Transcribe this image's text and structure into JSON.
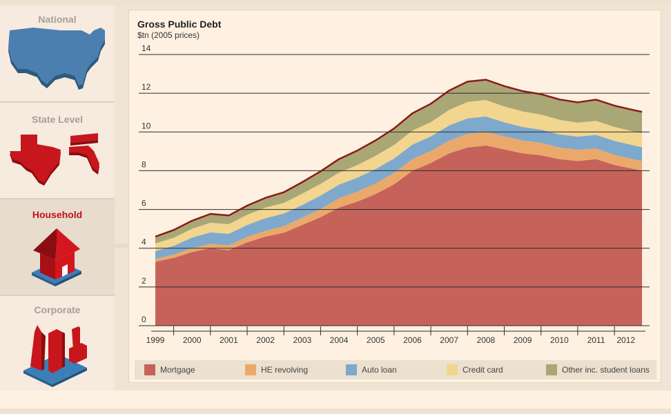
{
  "sidebar": {
    "items": [
      {
        "label": "National",
        "icon": "us-map-icon",
        "active": false
      },
      {
        "label": "State Level",
        "icon": "state-maps-icon",
        "active": false
      },
      {
        "label": "Household",
        "icon": "house-icon",
        "active": true
      },
      {
        "label": "Corporate",
        "icon": "buildings-icon",
        "active": false
      }
    ]
  },
  "colors": {
    "accent": "#c0111e",
    "mortgage": "#c5635a",
    "he_revolving": "#eba86b",
    "auto_loan": "#7ea9cc",
    "credit_card": "#f2d58e",
    "other": "#a9a775",
    "total_line": "#8b1a1a"
  },
  "chart_data": {
    "type": "area",
    "stacked": true,
    "title": "Gross Public Debt",
    "subtitle": "$tn (2005 prices)",
    "xlabel": "",
    "ylabel": "",
    "ylim": [
      0,
      14
    ],
    "yticks": [
      "0",
      "2",
      "4",
      "6",
      "8",
      "10",
      "12",
      "14"
    ],
    "xticks": [
      "1999",
      "2000",
      "2001",
      "2002",
      "2003",
      "2004",
      "2005",
      "2006",
      "2007",
      "2008",
      "2009",
      "2010",
      "2011",
      "2012"
    ],
    "x": [
      1999.0,
      1999.5,
      2000.0,
      2000.5,
      2001.0,
      2001.5,
      2002.0,
      2002.5,
      2003.0,
      2003.5,
      2004.0,
      2004.5,
      2005.0,
      2005.5,
      2006.0,
      2006.5,
      2007.0,
      2007.5,
      2008.0,
      2008.5,
      2009.0,
      2009.5,
      2010.0,
      2010.5,
      2011.0,
      2011.5,
      2012.0,
      2012.25
    ],
    "grid": true,
    "legend_position": "bottom",
    "series": [
      {
        "name": "Mortgage",
        "values": [
          3.3,
          3.5,
          3.8,
          4.0,
          3.9,
          4.3,
          4.6,
          4.8,
          5.2,
          5.6,
          6.1,
          6.4,
          6.8,
          7.3,
          8.0,
          8.4,
          8.9,
          9.2,
          9.3,
          9.1,
          8.9,
          8.8,
          8.6,
          8.5,
          8.6,
          8.3,
          8.1,
          8.0
        ]
      },
      {
        "name": "HE revolving",
        "values": [
          0.15,
          0.17,
          0.2,
          0.22,
          0.24,
          0.28,
          0.3,
          0.34,
          0.38,
          0.42,
          0.48,
          0.52,
          0.55,
          0.58,
          0.6,
          0.62,
          0.66,
          0.7,
          0.7,
          0.68,
          0.66,
          0.64,
          0.6,
          0.58,
          0.55,
          0.52,
          0.5,
          0.5
        ]
      },
      {
        "name": "Auto loan",
        "values": [
          0.4,
          0.45,
          0.55,
          0.6,
          0.6,
          0.62,
          0.65,
          0.65,
          0.65,
          0.7,
          0.7,
          0.72,
          0.74,
          0.75,
          0.75,
          0.75,
          0.78,
          0.8,
          0.8,
          0.72,
          0.7,
          0.68,
          0.68,
          0.68,
          0.7,
          0.72,
          0.72,
          0.72
        ]
      },
      {
        "name": "Credit card",
        "values": [
          0.4,
          0.42,
          0.45,
          0.5,
          0.5,
          0.52,
          0.55,
          0.55,
          0.58,
          0.6,
          0.62,
          0.65,
          0.68,
          0.7,
          0.72,
          0.74,
          0.8,
          0.85,
          0.85,
          0.82,
          0.8,
          0.78,
          0.75,
          0.72,
          0.72,
          0.72,
          0.72,
          0.72
        ]
      },
      {
        "name": "Other inc. student loans",
        "values": [
          0.35,
          0.4,
          0.42,
          0.45,
          0.45,
          0.48,
          0.5,
          0.55,
          0.6,
          0.65,
          0.7,
          0.75,
          0.8,
          0.85,
          0.9,
          0.95,
          1.0,
          1.05,
          1.05,
          1.05,
          1.05,
          1.05,
          1.05,
          1.05,
          1.1,
          1.1,
          1.1,
          1.1
        ]
      }
    ]
  }
}
